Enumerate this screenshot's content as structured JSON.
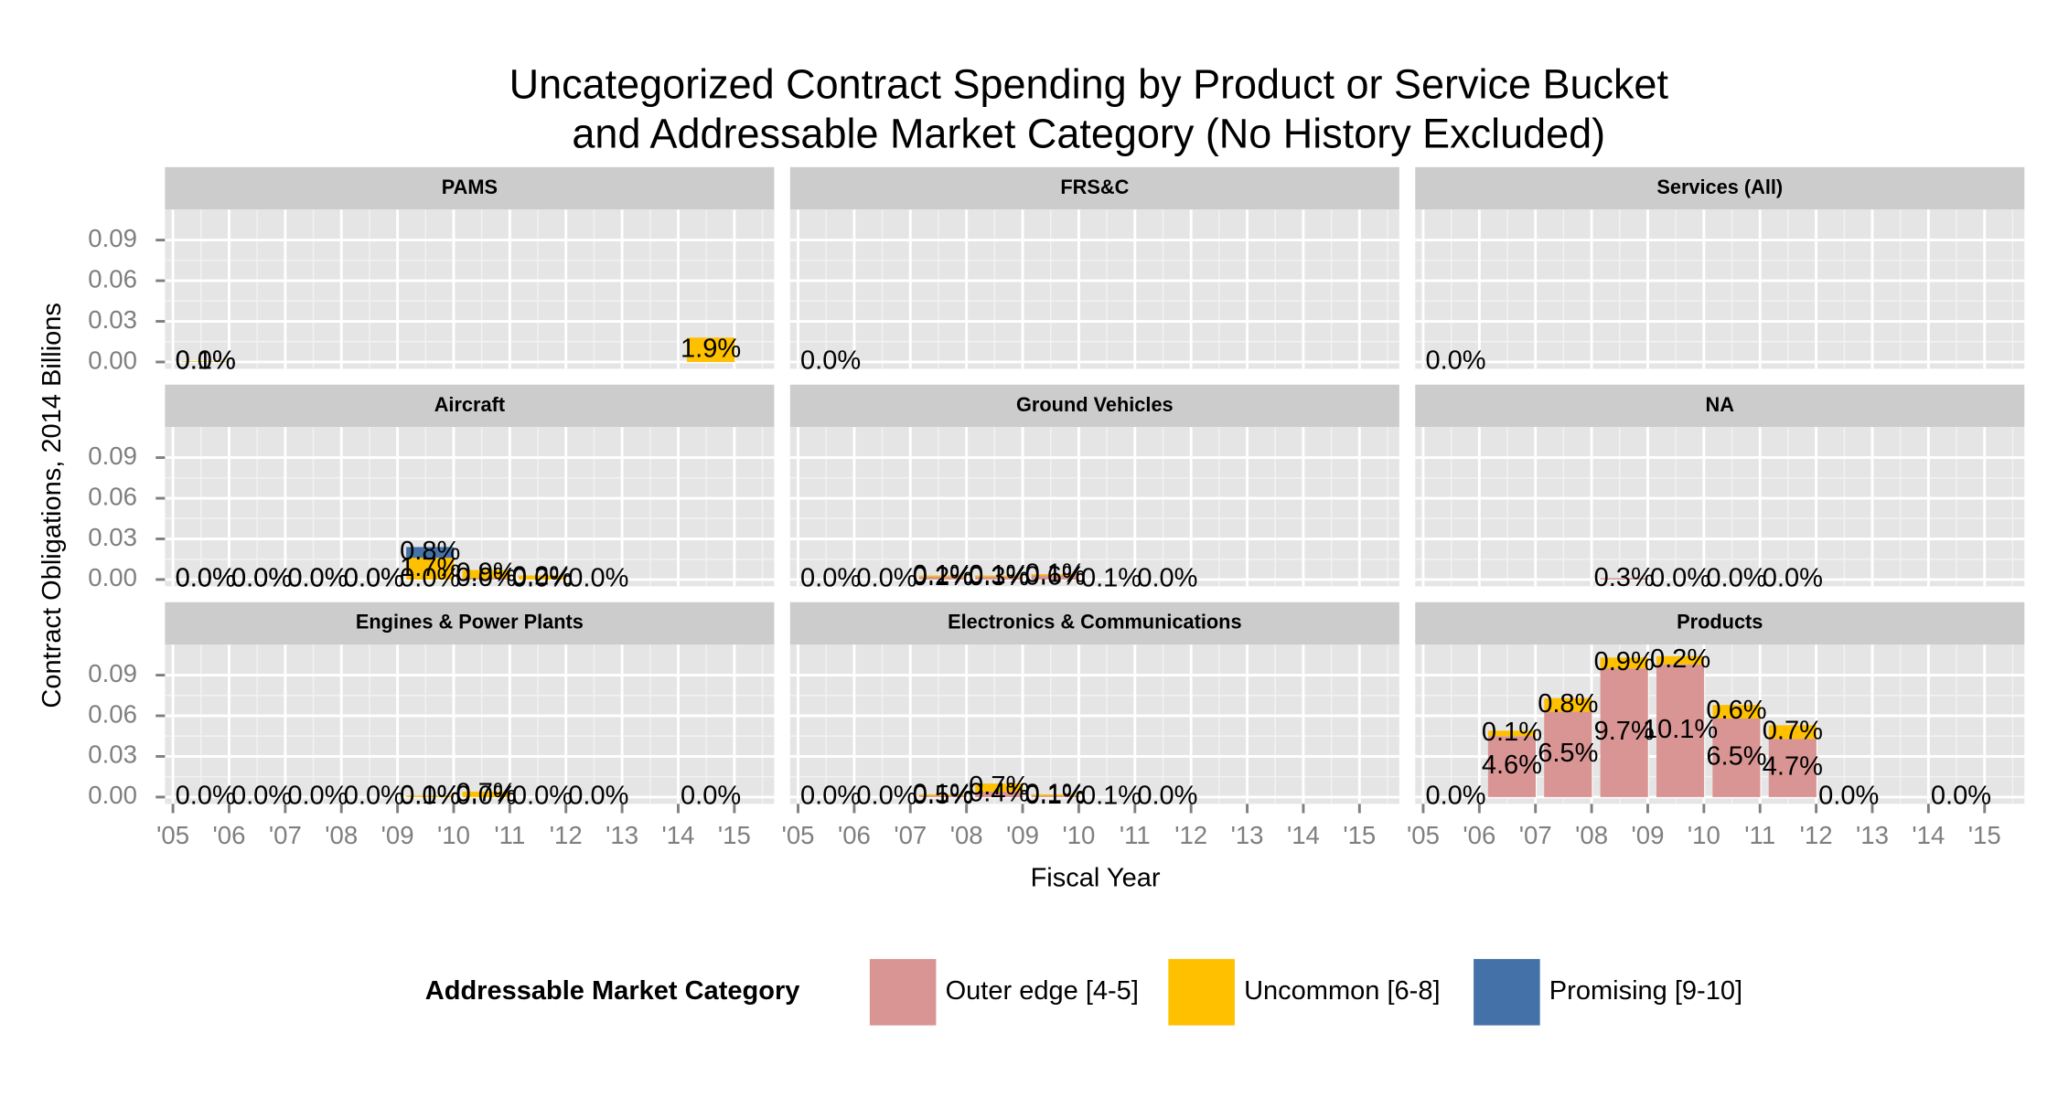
{
  "chart_data": {
    "type": "bar",
    "title": [
      "Uncategorized Contract Spending by Product or Service Bucket",
      "and Addressable Market Category (No History Excluded)"
    ],
    "x_label": "Fiscal Year",
    "y_label": "Contract Obligations, 2014 Billions",
    "legend_title": "Addressable Market Category",
    "categories": [
      "'05",
      "'06",
      "'07",
      "'08",
      "'09",
      "'10",
      "'11",
      "'12",
      "'13",
      "'14",
      "'15"
    ],
    "ylim": [
      -0.005,
      0.1125
    ],
    "yticks": [
      {
        "value": 0,
        "label": "0.00"
      },
      {
        "value": 0.03,
        "label": "0.03"
      },
      {
        "value": 0.06,
        "label": "0.06"
      },
      {
        "value": 0.09,
        "label": "0.09"
      }
    ],
    "grid": true,
    "series": [
      {
        "name": "Outer edge [4-5]",
        "color": "#d99594"
      },
      {
        "name": "Uncommon [6-8]",
        "color": "#ffc000"
      },
      {
        "name": "Promising [9-10]",
        "color": "#4472a8"
      }
    ],
    "panels": [
      {
        "title": "PAMS",
        "values": [
          [
            0,
            null,
            null,
            null,
            null,
            null,
            null,
            null,
            null,
            null,
            null
          ],
          [
            0.0005,
            null,
            null,
            null,
            null,
            null,
            null,
            null,
            null,
            0.018,
            null
          ],
          [
            null,
            null,
            null,
            null,
            null,
            null,
            null,
            null,
            null,
            null,
            null
          ]
        ],
        "share_labels": [
          [
            "0.0%",
            null,
            null,
            null,
            null,
            null,
            null,
            null,
            null,
            null,
            null
          ],
          [
            "0.1%",
            null,
            null,
            null,
            null,
            null,
            null,
            null,
            null,
            "1.9%",
            null
          ],
          [
            null,
            null,
            null,
            null,
            null,
            null,
            null,
            null,
            null,
            null,
            null
          ]
        ]
      },
      {
        "title": "FRS&C",
        "values": [
          [
            0,
            null,
            null,
            null,
            null,
            null,
            null,
            null,
            null,
            null,
            null
          ],
          [
            null,
            null,
            null,
            null,
            null,
            null,
            null,
            null,
            null,
            null,
            null
          ],
          [
            null,
            null,
            null,
            null,
            null,
            null,
            null,
            null,
            null,
            null,
            null
          ]
        ],
        "share_labels": [
          [
            "0.0%",
            null,
            null,
            null,
            null,
            null,
            null,
            null,
            null,
            null,
            null
          ],
          [
            null,
            null,
            null,
            null,
            null,
            null,
            null,
            null,
            null,
            null,
            null
          ],
          [
            null,
            null,
            null,
            null,
            null,
            null,
            null,
            null,
            null,
            null,
            null
          ]
        ]
      },
      {
        "title": "Services (All)",
        "values": [
          [
            0,
            null,
            null,
            null,
            null,
            null,
            null,
            null,
            null,
            null,
            null
          ],
          [
            null,
            null,
            null,
            null,
            null,
            null,
            null,
            null,
            null,
            null,
            null
          ],
          [
            null,
            null,
            null,
            null,
            null,
            null,
            null,
            null,
            null,
            null,
            null
          ]
        ],
        "share_labels": [
          [
            "0.0%",
            null,
            null,
            null,
            null,
            null,
            null,
            null,
            null,
            null,
            null
          ],
          [
            null,
            null,
            null,
            null,
            null,
            null,
            null,
            null,
            null,
            null,
            null
          ],
          [
            null,
            null,
            null,
            null,
            null,
            null,
            null,
            null,
            null,
            null,
            null
          ]
        ]
      },
      {
        "title": "Aircraft",
        "values": [
          [
            0,
            0,
            0,
            0,
            0,
            0.001,
            0,
            0,
            null,
            null,
            null
          ],
          [
            0,
            0,
            0,
            0,
            0.016,
            0.006,
            0.003,
            null,
            null,
            null,
            null
          ],
          [
            null,
            null,
            null,
            null,
            0.008,
            null,
            null,
            null,
            null,
            null,
            null
          ]
        ],
        "share_labels": [
          [
            "0.0%",
            "0.0%",
            "0.0%",
            "0.0%",
            "0.0%",
            "0.0%",
            "0.0%",
            "0.0%",
            null,
            null,
            null
          ],
          [
            "0.0%",
            "0.0%",
            "0.0%",
            "0.0%",
            "1.7%",
            "0.9%",
            "0.2%",
            null,
            null,
            null,
            null
          ],
          [
            null,
            null,
            null,
            null,
            "0.8%",
            null,
            null,
            null,
            null,
            null,
            null
          ]
        ]
      },
      {
        "title": "Ground Vehicles",
        "values": [
          [
            0,
            0,
            0.002,
            0.002,
            0.003,
            0,
            0,
            null,
            null,
            null,
            null
          ],
          [
            null,
            null,
            0.001,
            0.001,
            0.001,
            null,
            null,
            null,
            null,
            null,
            null
          ],
          [
            null,
            null,
            null,
            null,
            null,
            null,
            null,
            null,
            null,
            null,
            null
          ]
        ],
        "share_labels": [
          [
            "0.0%",
            "0.0%",
            "0.2%",
            "0.3%",
            "0.6%",
            "0.1%",
            "0.0%",
            null,
            null,
            null,
            null
          ],
          [
            null,
            null,
            "0.1%",
            "0.1%",
            "0.1%",
            null,
            null,
            null,
            null,
            null,
            null
          ],
          [
            null,
            null,
            null,
            null,
            null,
            null,
            null,
            null,
            null,
            null,
            null
          ]
        ]
      },
      {
        "title": "NA",
        "values": [
          [
            null,
            null,
            null,
            0.001,
            0,
            0,
            0,
            null,
            null,
            null,
            null
          ],
          [
            null,
            null,
            null,
            null,
            null,
            null,
            null,
            null,
            null,
            null,
            null
          ],
          [
            null,
            null,
            null,
            null,
            null,
            null,
            null,
            null,
            null,
            null,
            null
          ]
        ],
        "share_labels": [
          [
            null,
            null,
            null,
            "0.3%",
            "0.0%",
            "0.0%",
            "0.0%",
            null,
            null,
            null,
            null
          ],
          [
            null,
            null,
            null,
            null,
            null,
            null,
            null,
            null,
            null,
            null,
            null
          ],
          [
            null,
            null,
            null,
            null,
            null,
            null,
            null,
            null,
            null,
            null,
            null
          ]
        ]
      },
      {
        "title": "Engines & Power Plants",
        "values": [
          [
            0,
            0,
            0,
            0,
            0,
            0,
            0,
            0,
            null,
            0,
            null
          ],
          [
            null,
            null,
            null,
            null,
            0.001,
            0.004,
            null,
            null,
            null,
            null,
            null
          ],
          [
            null,
            null,
            null,
            null,
            null,
            null,
            null,
            null,
            null,
            null,
            null
          ]
        ],
        "share_labels": [
          [
            "0.0%",
            "0.0%",
            "0.0%",
            "0.0%",
            "0.0%",
            "0.0%",
            "0.0%",
            "0.0%",
            null,
            "0.0%",
            null
          ],
          [
            null,
            null,
            null,
            null,
            "0.1%",
            "0.7%",
            null,
            null,
            null,
            null,
            null
          ],
          [
            null,
            null,
            null,
            null,
            null,
            null,
            null,
            null,
            null,
            null,
            null
          ]
        ]
      },
      {
        "title": "Electronics & Communications",
        "values": [
          [
            0,
            0,
            0.001,
            0.004,
            0.001,
            0,
            0,
            null,
            null,
            null,
            null
          ],
          [
            null,
            null,
            0.001,
            0.006,
            0.001,
            null,
            null,
            null,
            null,
            null,
            null
          ],
          [
            null,
            null,
            null,
            null,
            null,
            null,
            null,
            null,
            null,
            null,
            null
          ]
        ],
        "share_labels": [
          [
            "0.0%",
            "0.0%",
            "0.5%",
            "0.4%",
            "0.1%",
            "0.1%",
            "0.0%",
            null,
            null,
            null,
            null
          ],
          [
            null,
            null,
            "0.1%",
            "0.7%",
            "0.1%",
            null,
            null,
            null,
            null,
            null,
            null
          ],
          [
            null,
            null,
            null,
            null,
            null,
            null,
            null,
            null,
            null,
            null,
            null
          ]
        ]
      },
      {
        "title": "Products",
        "values": [
          [
            0,
            0.045,
            0.063,
            0.095,
            0.098,
            0.058,
            0.043,
            0,
            null,
            0,
            null
          ],
          [
            null,
            0.004,
            0.01,
            0.008,
            0.006,
            0.01,
            0.01,
            null,
            null,
            null,
            null
          ],
          [
            null,
            null,
            null,
            null,
            null,
            null,
            null,
            null,
            null,
            null,
            null
          ]
        ],
        "share_labels": [
          [
            "0.0%",
            "4.6%",
            "6.5%",
            "9.7%",
            "10.1%",
            "6.5%",
            "4.7%",
            "0.0%",
            null,
            "0.0%",
            null
          ],
          [
            null,
            "0.1%",
            "0.8%",
            "0.9%",
            "0.2%",
            "0.6%",
            "0.7%",
            null,
            null,
            null,
            null
          ],
          [
            null,
            null,
            null,
            null,
            null,
            null,
            null,
            null,
            null,
            null,
            null
          ]
        ]
      }
    ]
  }
}
